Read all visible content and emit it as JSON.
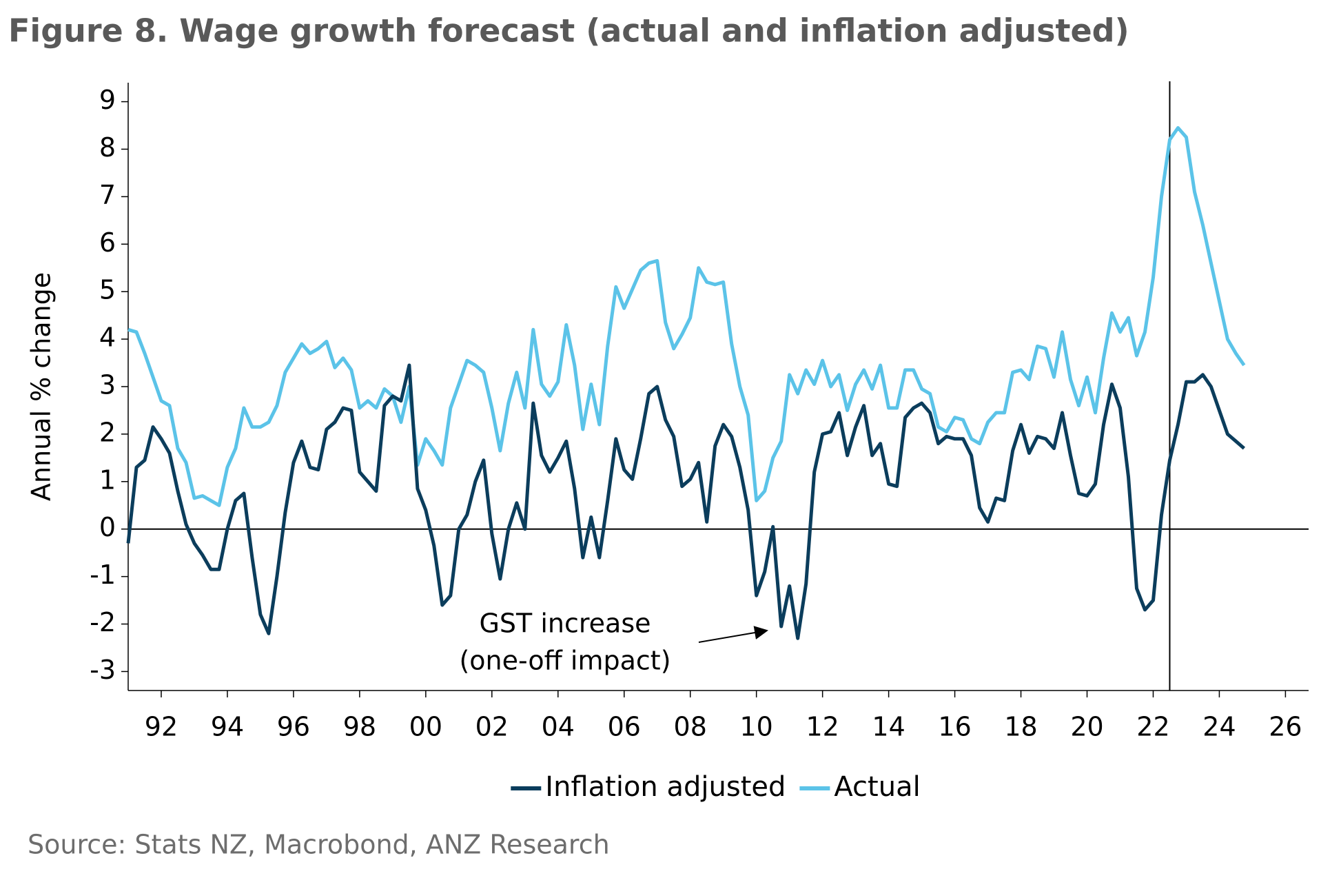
{
  "chart_data": {
    "type": "line",
    "title": "Figure 8.  Wage growth forecast (actual and inflation adjusted)",
    "y_label": "Annual % change",
    "source": "Source: Stats NZ, Macrobond, ANZ Research",
    "annotation": {
      "lines": [
        "GST increase",
        "(one-off impact)"
      ]
    },
    "vline": 2022.5,
    "xlim": [
      1991,
      2026.7
    ],
    "ylim": [
      -3.4,
      9.4
    ],
    "yticks": [
      -3,
      -2,
      -1,
      0,
      1,
      2,
      3,
      4,
      5,
      6,
      7,
      8,
      9
    ],
    "xticks": [
      {
        "value": 1992,
        "label": "92"
      },
      {
        "value": 1994,
        "label": "94"
      },
      {
        "value": 1996,
        "label": "96"
      },
      {
        "value": 1998,
        "label": "98"
      },
      {
        "value": 2000,
        "label": "00"
      },
      {
        "value": 2002,
        "label": "02"
      },
      {
        "value": 2004,
        "label": "04"
      },
      {
        "value": 2006,
        "label": "06"
      },
      {
        "value": 2008,
        "label": "08"
      },
      {
        "value": 2010,
        "label": "10"
      },
      {
        "value": 2012,
        "label": "12"
      },
      {
        "value": 2014,
        "label": "14"
      },
      {
        "value": 2016,
        "label": "16"
      },
      {
        "value": 2018,
        "label": "18"
      },
      {
        "value": 2020,
        "label": "20"
      },
      {
        "value": 2022,
        "label": "22"
      },
      {
        "value": 2024,
        "label": "24"
      },
      {
        "value": 2026,
        "label": "26"
      }
    ],
    "x": [
      1991,
      1991.25,
      1991.5,
      1991.75,
      1992,
      1992.25,
      1992.5,
      1992.75,
      1993,
      1993.25,
      1993.5,
      1993.75,
      1994,
      1994.25,
      1994.5,
      1994.75,
      1995,
      1995.25,
      1995.5,
      1995.75,
      1996,
      1996.25,
      1996.5,
      1996.75,
      1997,
      1997.25,
      1997.5,
      1997.75,
      1998,
      1998.25,
      1998.5,
      1998.75,
      1999,
      1999.25,
      1999.5,
      1999.75,
      2000,
      2000.25,
      2000.5,
      2000.75,
      2001,
      2001.25,
      2001.5,
      2001.75,
      2002,
      2002.25,
      2002.5,
      2002.75,
      2003,
      2003.25,
      2003.5,
      2003.75,
      2004,
      2004.25,
      2004.5,
      2004.75,
      2005,
      2005.25,
      2005.5,
      2005.75,
      2006,
      2006.25,
      2006.5,
      2006.75,
      2007,
      2007.25,
      2007.5,
      2007.75,
      2008,
      2008.25,
      2008.5,
      2008.75,
      2009,
      2009.25,
      2009.5,
      2009.75,
      2010,
      2010.25,
      2010.5,
      2010.75,
      2011,
      2011.25,
      2011.5,
      2011.75,
      2012,
      2012.25,
      2012.5,
      2012.75,
      2013,
      2013.25,
      2013.5,
      2013.75,
      2014,
      2014.25,
      2014.5,
      2014.75,
      2015,
      2015.25,
      2015.5,
      2015.75,
      2016,
      2016.25,
      2016.5,
      2016.75,
      2017,
      2017.25,
      2017.5,
      2017.75,
      2018,
      2018.25,
      2018.5,
      2018.75,
      2019,
      2019.25,
      2019.5,
      2019.75,
      2020,
      2020.25,
      2020.5,
      2020.75,
      2021,
      2021.25,
      2021.5,
      2021.75,
      2022,
      2022.25,
      2022.5,
      2022.75,
      2023,
      2023.25,
      2023.5,
      2023.75,
      2024,
      2024.25,
      2024.5,
      2024.75
    ],
    "series": [
      {
        "name": "Inflation adjusted",
        "color": "#0b3d5c",
        "values": [
          -0.3,
          1.3,
          1.45,
          2.15,
          1.9,
          1.6,
          0.8,
          0.1,
          -0.3,
          -0.55,
          -0.85,
          -0.85,
          0.0,
          0.6,
          0.75,
          -0.6,
          -1.8,
          -2.2,
          -1.0,
          0.35,
          1.4,
          1.85,
          1.3,
          1.25,
          2.1,
          2.25,
          2.55,
          2.5,
          1.2,
          1.0,
          0.8,
          2.6,
          2.8,
          2.7,
          3.45,
          0.85,
          0.4,
          -0.35,
          -1.6,
          -1.4,
          0.0,
          0.3,
          1.0,
          1.45,
          -0.1,
          -1.05,
          0.0,
          0.55,
          0.0,
          2.65,
          1.55,
          1.2,
          1.5,
          1.85,
          0.85,
          -0.6,
          0.25,
          -0.6,
          0.6,
          1.9,
          1.25,
          1.05,
          1.9,
          2.85,
          3.0,
          2.3,
          1.95,
          0.9,
          1.05,
          1.4,
          0.15,
          1.75,
          2.2,
          1.95,
          1.3,
          0.4,
          -1.4,
          -0.9,
          0.05,
          -2.05,
          -1.2,
          -2.3,
          -1.15,
          1.2,
          2.0,
          2.05,
          2.45,
          1.55,
          2.15,
          2.6,
          1.55,
          1.8,
          0.95,
          0.9,
          2.35,
          2.55,
          2.65,
          2.45,
          1.8,
          1.95,
          1.9,
          1.9,
          1.55,
          0.45,
          0.15,
          0.65,
          0.6,
          1.65,
          2.2,
          1.6,
          1.95,
          1.9,
          1.7,
          2.45,
          1.55,
          0.75,
          0.7,
          0.95,
          2.2,
          3.05,
          2.55,
          1.1,
          -1.25,
          -1.7,
          -1.5,
          0.3,
          1.45,
          2.2,
          3.1,
          3.1,
          3.25,
          3.0,
          2.5,
          2.0,
          1.85,
          1.7
        ]
      },
      {
        "name": "Actual",
        "color": "#5bc3e8",
        "values": [
          4.2,
          4.15,
          3.7,
          3.2,
          2.7,
          2.6,
          1.7,
          1.4,
          0.65,
          0.7,
          0.6,
          0.5,
          1.3,
          1.7,
          2.55,
          2.15,
          2.15,
          2.25,
          2.6,
          3.3,
          3.6,
          3.9,
          3.7,
          3.8,
          3.95,
          3.4,
          3.6,
          3.35,
          2.55,
          2.7,
          2.55,
          2.95,
          2.8,
          2.25,
          3.0,
          1.35,
          1.9,
          1.65,
          1.35,
          2.55,
          3.05,
          3.55,
          3.45,
          3.3,
          2.55,
          1.65,
          2.65,
          3.3,
          2.55,
          4.2,
          3.05,
          2.8,
          3.1,
          4.3,
          3.45,
          2.1,
          3.05,
          2.2,
          3.85,
          5.1,
          4.65,
          5.05,
          5.45,
          5.6,
          5.65,
          4.35,
          3.8,
          4.1,
          4.45,
          5.5,
          5.2,
          5.15,
          5.2,
          3.9,
          3.0,
          2.4,
          0.6,
          0.8,
          1.5,
          1.85,
          3.25,
          2.85,
          3.35,
          3.05,
          3.55,
          3.0,
          3.25,
          2.5,
          3.05,
          3.35,
          2.95,
          3.45,
          2.55,
          2.55,
          3.35,
          3.35,
          2.95,
          2.85,
          2.15,
          2.05,
          2.35,
          2.3,
          1.9,
          1.8,
          2.25,
          2.45,
          2.45,
          3.3,
          3.35,
          3.15,
          3.85,
          3.8,
          3.2,
          4.15,
          3.15,
          2.6,
          3.2,
          2.45,
          3.6,
          4.55,
          4.15,
          4.45,
          3.65,
          4.15,
          5.3,
          7.0,
          8.2,
          8.45,
          8.25,
          7.1,
          6.4,
          5.6,
          4.8,
          4.0,
          3.7,
          3.45
        ]
      }
    ]
  }
}
